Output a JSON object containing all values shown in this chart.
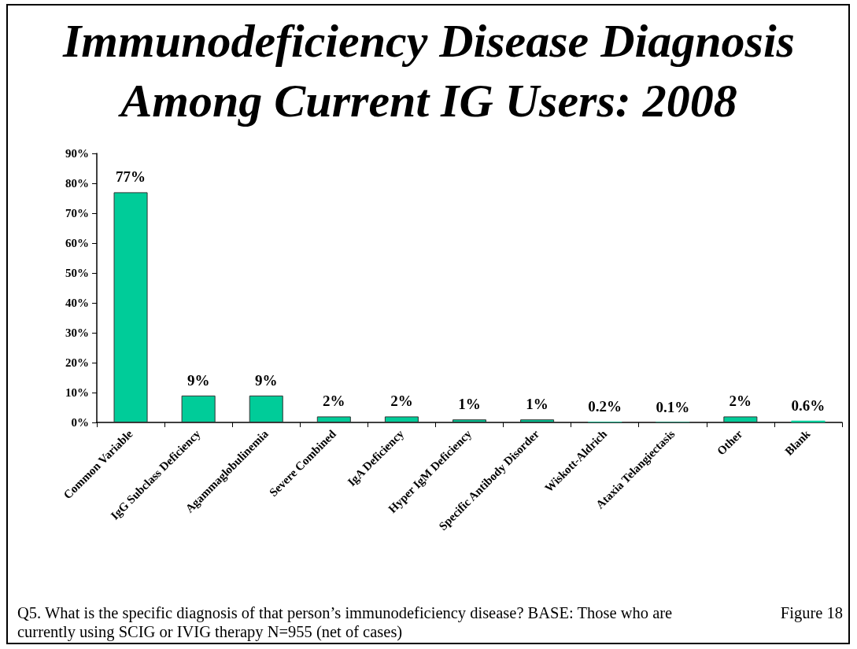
{
  "chart_data": {
    "type": "bar",
    "title": "Immunodeficiency Disease Diagnosis Among Current IG Users: 2008",
    "categories": [
      "Common Variable",
      "IgG Subclass Deficiency",
      "Agammaglobulinemia",
      "Severe Combined",
      "IgA Deficiency",
      "Hyper IgM Deficiency",
      "Specific Antibody Disorder",
      "Wiskott-Aldrich",
      "Ataxia Telangiectasis",
      "Other",
      "Blank"
    ],
    "values": [
      77,
      9,
      9,
      2,
      2,
      1,
      1,
      0.2,
      0.1,
      2,
      0.6
    ],
    "value_labels": [
      "77%",
      "9%",
      "9%",
      "2%",
      "2%",
      "1%",
      "1%",
      "0.2%",
      "0.1%",
      "2%",
      "0.6%"
    ],
    "color": "#00cc99",
    "ylim": [
      0,
      90
    ],
    "yticks": [
      {
        "value": 0,
        "label": "0%"
      },
      {
        "value": 10,
        "label": "10%"
      },
      {
        "value": 20,
        "label": "20%"
      },
      {
        "value": 30,
        "label": "30%"
      },
      {
        "value": 40,
        "label": "40%"
      },
      {
        "value": 50,
        "label": "50%"
      },
      {
        "value": 60,
        "label": "60%"
      },
      {
        "value": 70,
        "label": "70%"
      },
      {
        "value": 80,
        "label": "80%"
      },
      {
        "value": 90,
        "label": "90%"
      }
    ],
    "annotations": [
      "Q5. What is the specific diagnosis of that person’s immunodeficiency disease? BASE: Those who are currently using SCIG or IVIG therapy N=955 (net of cases)",
      "Figure 18"
    ]
  }
}
